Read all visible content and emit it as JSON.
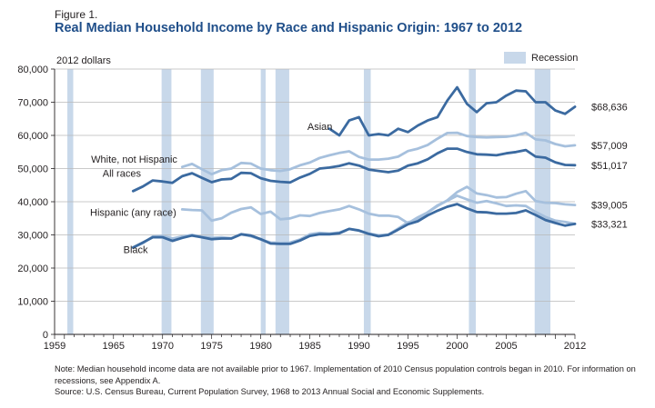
{
  "figure_label": "Figure 1.",
  "title": "Real Median Household Income by Race and Hispanic Origin: 1967 to 2012",
  "notes": {
    "note": "Note: Median household income data are not available prior to 1967. Implementation of 2010 Census population controls began in 2010. For information on recessions, see Appendix A.",
    "source": "Source: U.S. Census Bureau, Current Population Survey, 1968 to 2013 Annual Social and Economic Supplements."
  },
  "colors": {
    "dark": "#3b6aa0",
    "light": "#a6c0dd",
    "recession": "#c8d8ea",
    "axis": "#231f20",
    "grid": "#b9b9b9"
  },
  "chart_data": {
    "type": "line",
    "ylabel": "2012 dollars",
    "xlim": [
      1959,
      2012
    ],
    "ylim": [
      0,
      80000
    ],
    "x_ticks": [
      1959,
      1965,
      1970,
      1975,
      1980,
      1985,
      1990,
      1995,
      2000,
      2005,
      2012
    ],
    "y_ticks": [
      {
        "value": 0,
        "label": "0"
      },
      {
        "value": 10000,
        "label": "10,000"
      },
      {
        "value": 20000,
        "label": "20,000"
      },
      {
        "value": 30000,
        "label": "30,000"
      },
      {
        "value": 40000,
        "label": "40,000"
      },
      {
        "value": 50000,
        "label": "50,000"
      },
      {
        "value": 60000,
        "label": "60,000"
      },
      {
        "value": 70000,
        "label": "70,000"
      },
      {
        "value": 80000,
        "label": "80,000"
      }
    ],
    "grid": "horizontal",
    "legend": {
      "label": "Recession",
      "placement": "top-right"
    },
    "recessions": [
      [
        1960.3,
        1960.9
      ],
      [
        1969.9,
        1970.9
      ],
      [
        1973.9,
        1975.2
      ],
      [
        1980.0,
        1980.5
      ],
      [
        1981.5,
        1982.9
      ],
      [
        1990.5,
        1991.2
      ],
      [
        2001.2,
        2001.9
      ],
      [
        2007.9,
        2009.5
      ]
    ],
    "series": [
      {
        "name": "Asian",
        "style": "dark",
        "end_label": "$68,636",
        "x": [
          1987,
          1988,
          1989,
          1990,
          1991,
          1992,
          1993,
          1994,
          1995,
          1996,
          1997,
          1998,
          1999,
          2000,
          2001,
          2002,
          2003,
          2004,
          2005,
          2006,
          2007,
          2008,
          2009,
          2010,
          2011,
          2012
        ],
        "y": [
          62000,
          60000,
          64500,
          65500,
          60000,
          60400,
          60000,
          62000,
          61000,
          63000,
          64500,
          65500,
          70500,
          74500,
          69500,
          67000,
          69700,
          70000,
          72000,
          73500,
          73300,
          70000,
          70000,
          67500,
          66500,
          68636
        ]
      },
      {
        "name": "White, not Hispanic",
        "style": "light",
        "end_label": "$57,009",
        "x": [
          1972,
          1973,
          1974,
          1975,
          1976,
          1977,
          1978,
          1979,
          1980,
          1981,
          1982,
          1983,
          1984,
          1985,
          1986,
          1987,
          1988,
          1989,
          1990,
          1991,
          1992,
          1993,
          1994,
          1995,
          1996,
          1997,
          1998,
          1999,
          2000,
          2001,
          2002,
          2003,
          2004,
          2005,
          2006,
          2007,
          2008,
          2009,
          2010,
          2011,
          2012
        ],
        "y": [
          50500,
          51400,
          49800,
          48300,
          49500,
          50000,
          51700,
          51500,
          50000,
          49500,
          49300,
          49800,
          51000,
          51800,
          53200,
          54000,
          54700,
          55200,
          53500,
          52700,
          52700,
          53000,
          53600,
          55300,
          56000,
          57100,
          59000,
          60700,
          60800,
          59800,
          59500,
          59400,
          59500,
          59600,
          60000,
          60800,
          58800,
          58500,
          57400,
          56700,
          57009
        ]
      },
      {
        "name": "All races",
        "style": "dark",
        "end_label": "$51,017",
        "x": [
          1967,
          1968,
          1969,
          1970,
          1971,
          1972,
          1973,
          1974,
          1975,
          1976,
          1977,
          1978,
          1979,
          1980,
          1981,
          1982,
          1983,
          1984,
          1985,
          1986,
          1987,
          1988,
          1989,
          1990,
          1991,
          1992,
          1993,
          1994,
          1995,
          1996,
          1997,
          1998,
          1999,
          2000,
          2001,
          2002,
          2003,
          2004,
          2005,
          2006,
          2007,
          2008,
          2009,
          2010,
          2011,
          2012
        ],
        "y": [
          43200,
          44600,
          46400,
          46100,
          45700,
          47700,
          48600,
          47200,
          45900,
          46700,
          46900,
          48700,
          48600,
          47100,
          46300,
          46000,
          45800,
          47300,
          48400,
          50000,
          50300,
          50800,
          51600,
          50900,
          49700,
          49300,
          48900,
          49400,
          50900,
          51600,
          52800,
          54600,
          56000,
          56000,
          55000,
          54300,
          54200,
          54000,
          54600,
          55000,
          55600,
          53600,
          53300,
          51900,
          51100,
          51017
        ]
      },
      {
        "name": "Hispanic (any race)",
        "style": "light",
        "end_label": "$39,005",
        "x": [
          1972,
          1973,
          1974,
          1975,
          1976,
          1977,
          1978,
          1979,
          1980,
          1981,
          1982,
          1983,
          1984,
          1985,
          1986,
          1987,
          1988,
          1989,
          1990,
          1991,
          1992,
          1993,
          1994,
          1995,
          1996,
          1997,
          1998,
          1999,
          2000,
          2001,
          2002,
          2003,
          2004,
          2005,
          2006,
          2007,
          2008,
          2009,
          2010,
          2011,
          2012
        ],
        "y": [
          37700,
          37500,
          37400,
          34300,
          35000,
          36700,
          37800,
          38300,
          36300,
          37000,
          34700,
          35000,
          35900,
          35700,
          36600,
          37200,
          37700,
          38700,
          37700,
          36400,
          35800,
          35800,
          35400,
          33500,
          35300,
          36800,
          38700,
          40400,
          42900,
          44500,
          42500,
          42000,
          41300,
          41400,
          42400,
          43200,
          40200,
          39700,
          39600,
          39200,
          39005
        ]
      },
      {
        "name": "Black",
        "style": "light",
        "end_label": "",
        "x": [
          1967,
          1968,
          1969,
          1970,
          1971,
          1972,
          1973,
          1974,
          1975,
          1976,
          1977,
          1978,
          1979,
          1980,
          1981,
          1982,
          1983,
          1984,
          1985,
          1986,
          1987,
          1988,
          1989,
          1990,
          1991,
          1992,
          1993,
          1994,
          1995,
          1996,
          1997,
          1998,
          1999,
          2000,
          2001,
          2002,
          2003,
          2004,
          2005,
          2006,
          2007,
          2008,
          2009,
          2010,
          2011,
          2012
        ],
        "y": [
          26200,
          27500,
          29500,
          29700,
          28900,
          29500,
          30000,
          29400,
          29100,
          29300,
          29000,
          30200,
          29600,
          28600,
          27700,
          27600,
          27700,
          28600,
          30200,
          30600,
          30400,
          30700,
          31800,
          31400,
          30400,
          29900,
          30100,
          31900,
          33800,
          34500,
          36800,
          38900,
          40300,
          41800,
          40700,
          39700,
          40200,
          39500,
          38700,
          38900,
          38700,
          36900,
          35400,
          34300,
          33900,
          33321
        ]
      },
      {
        "name": "Black",
        "style": "dark",
        "end_label": "$33,321",
        "x": [
          1967,
          1968,
          1969,
          1970,
          1971,
          1972,
          1973,
          1974,
          1975,
          1976,
          1977,
          1978,
          1979,
          1980,
          1981,
          1982,
          1983,
          1984,
          1985,
          1986,
          1987,
          1988,
          1989,
          1990,
          1991,
          1992,
          1993,
          1994,
          1995,
          1996,
          1997,
          1998,
          1999,
          2000,
          2001,
          2002,
          2003,
          2004,
          2005,
          2006,
          2007,
          2008,
          2009,
          2010,
          2011,
          2012
        ],
        "y": [
          26200,
          27700,
          29300,
          29300,
          28200,
          29100,
          29800,
          29300,
          28700,
          28900,
          28900,
          30200,
          29800,
          28700,
          27400,
          27300,
          27300,
          28300,
          29700,
          30200,
          30200,
          30500,
          31800,
          31300,
          30300,
          29600,
          30000,
          31600,
          33200,
          34100,
          35900,
          37300,
          38500,
          39300,
          38000,
          36900,
          36800,
          36400,
          36400,
          36600,
          37400,
          36000,
          34500,
          33600,
          32800,
          33321
        ]
      }
    ],
    "series_labels": [
      {
        "text": "Asian",
        "x": 1987.3,
        "y": 61700,
        "anchor": "end"
      },
      {
        "text": "White, not Hispanic",
        "x": 1971.5,
        "y": 51800,
        "anchor": "end"
      },
      {
        "text": "All races",
        "x": 1967.8,
        "y": 47600,
        "anchor": "end"
      },
      {
        "text": "Hispanic (any race)",
        "x": 1971.4,
        "y": 35800,
        "anchor": "end"
      },
      {
        "text": "Black",
        "x": 1968.5,
        "y": 24500,
        "anchor": "end"
      }
    ]
  }
}
